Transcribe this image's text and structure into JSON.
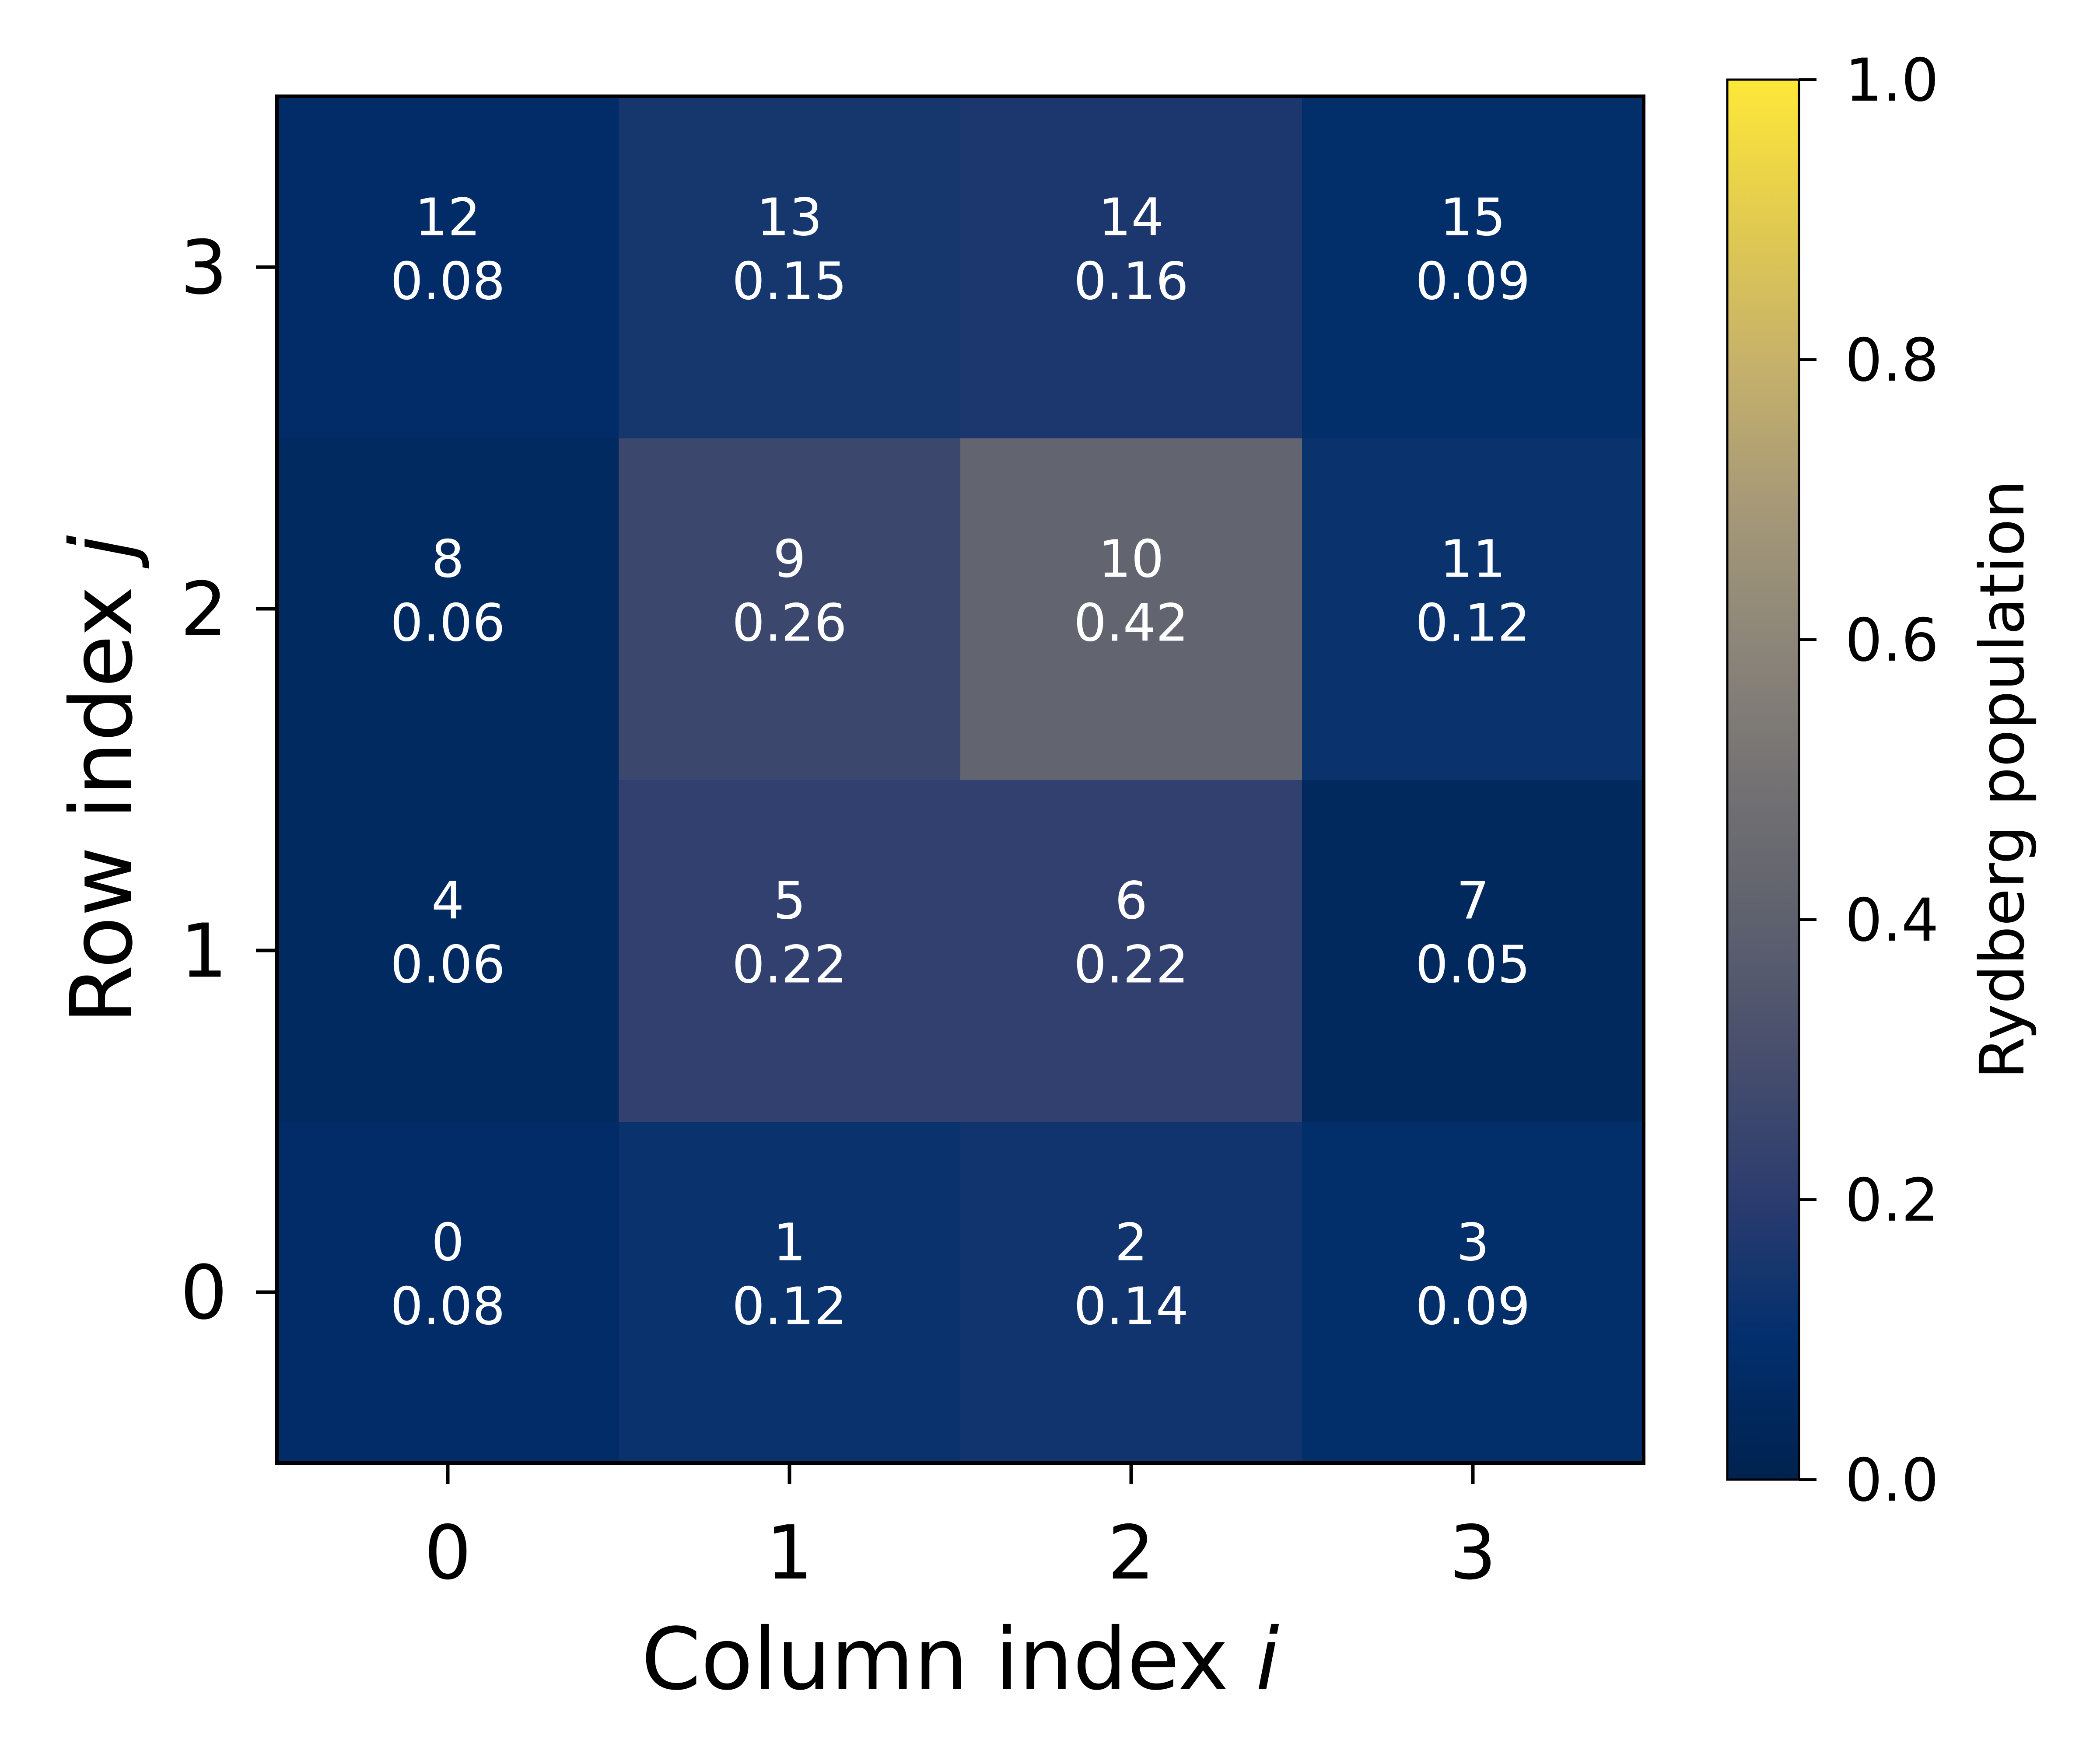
{
  "chart_data": {
    "type": "heatmap",
    "x": [
      0,
      1,
      2,
      3
    ],
    "y": [
      0,
      1,
      2,
      3
    ],
    "xlabel": {
      "prefix": "Column index ",
      "symbol": "i"
    },
    "ylabel": {
      "prefix": "Row index ",
      "symbol": "j"
    },
    "x_tick_labels": [
      "0",
      "1",
      "2",
      "3"
    ],
    "y_tick_labels": [
      "0",
      "1",
      "2",
      "3"
    ],
    "cells": [
      {
        "col": 0,
        "row": 0,
        "site": "0",
        "value": 0.08,
        "label": "0.08"
      },
      {
        "col": 1,
        "row": 0,
        "site": "1",
        "value": 0.12,
        "label": "0.12"
      },
      {
        "col": 2,
        "row": 0,
        "site": "2",
        "value": 0.14,
        "label": "0.14"
      },
      {
        "col": 3,
        "row": 0,
        "site": "3",
        "value": 0.09,
        "label": "0.09"
      },
      {
        "col": 0,
        "row": 1,
        "site": "4",
        "value": 0.06,
        "label": "0.06"
      },
      {
        "col": 1,
        "row": 1,
        "site": "5",
        "value": 0.22,
        "label": "0.22"
      },
      {
        "col": 2,
        "row": 1,
        "site": "6",
        "value": 0.22,
        "label": "0.22"
      },
      {
        "col": 3,
        "row": 1,
        "site": "7",
        "value": 0.05,
        "label": "0.05"
      },
      {
        "col": 0,
        "row": 2,
        "site": "8",
        "value": 0.06,
        "label": "0.06"
      },
      {
        "col": 1,
        "row": 2,
        "site": "9",
        "value": 0.26,
        "label": "0.26"
      },
      {
        "col": 2,
        "row": 2,
        "site": "10",
        "value": 0.42,
        "label": "0.42"
      },
      {
        "col": 3,
        "row": 2,
        "site": "11",
        "value": 0.12,
        "label": "0.12"
      },
      {
        "col": 0,
        "row": 3,
        "site": "12",
        "value": 0.08,
        "label": "0.08"
      },
      {
        "col": 1,
        "row": 3,
        "site": "13",
        "value": 0.15,
        "label": "0.15"
      },
      {
        "col": 2,
        "row": 3,
        "site": "14",
        "value": 0.16,
        "label": "0.16"
      },
      {
        "col": 3,
        "row": 3,
        "site": "15",
        "value": 0.09,
        "label": "0.09"
      }
    ],
    "colorbar": {
      "label": "Rydberg population",
      "range": [
        0.0,
        1.0
      ],
      "ticks": [
        0.0,
        0.2,
        0.4,
        0.6,
        0.8,
        1.0
      ],
      "tick_labels": [
        "0.0",
        "0.2",
        "0.4",
        "0.6",
        "0.8",
        "1.0"
      ],
      "colormap": "cividis"
    },
    "grid": false
  }
}
